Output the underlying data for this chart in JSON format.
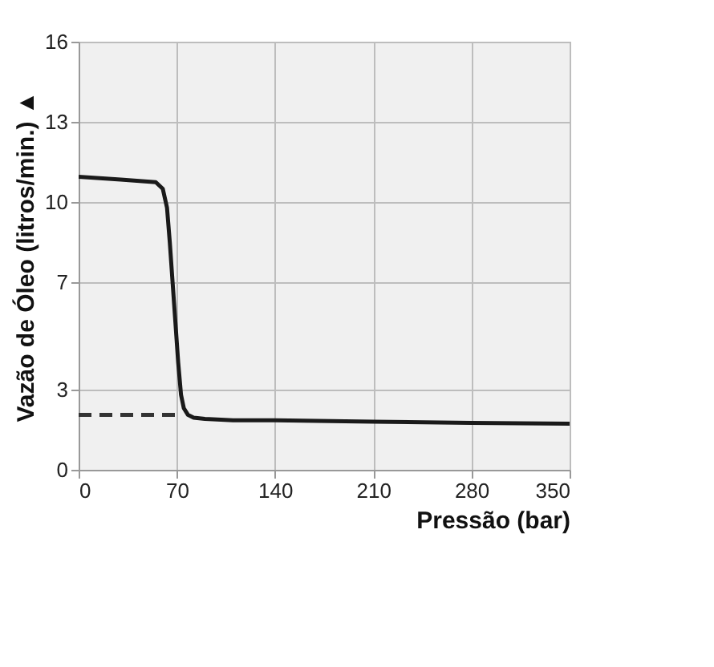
{
  "chart_data": {
    "type": "line",
    "xlabel": "Pressão (bar)",
    "ylabel": "Vazão de Óleo (litros/min.) ▲",
    "xlim": [
      0,
      350
    ],
    "xticks": [
      0,
      70,
      140,
      210,
      280,
      350
    ],
    "ylim": [
      0,
      16
    ],
    "yticks": [
      0,
      3,
      7,
      10,
      13,
      16
    ],
    "grid": true,
    "series": [
      {
        "color": "#1a1a1a",
        "line_style": "solid",
        "x": [
          0,
          30,
          55,
          60,
          63,
          65,
          67,
          69,
          71,
          73,
          75,
          78,
          82,
          90,
          110,
          140,
          210,
          280,
          350
        ],
        "values": [
          10.95,
          10.85,
          10.75,
          10.5,
          9.8,
          8.5,
          7.0,
          5.5,
          4.0,
          2.8,
          2.3,
          2.05,
          1.95,
          1.9,
          1.85,
          1.85,
          1.8,
          1.75,
          1.72
        ]
      },
      {
        "color": "#333333",
        "line_style": "dashed",
        "x": [
          0,
          72
        ],
        "values": [
          2.05,
          2.05
        ]
      }
    ]
  }
}
